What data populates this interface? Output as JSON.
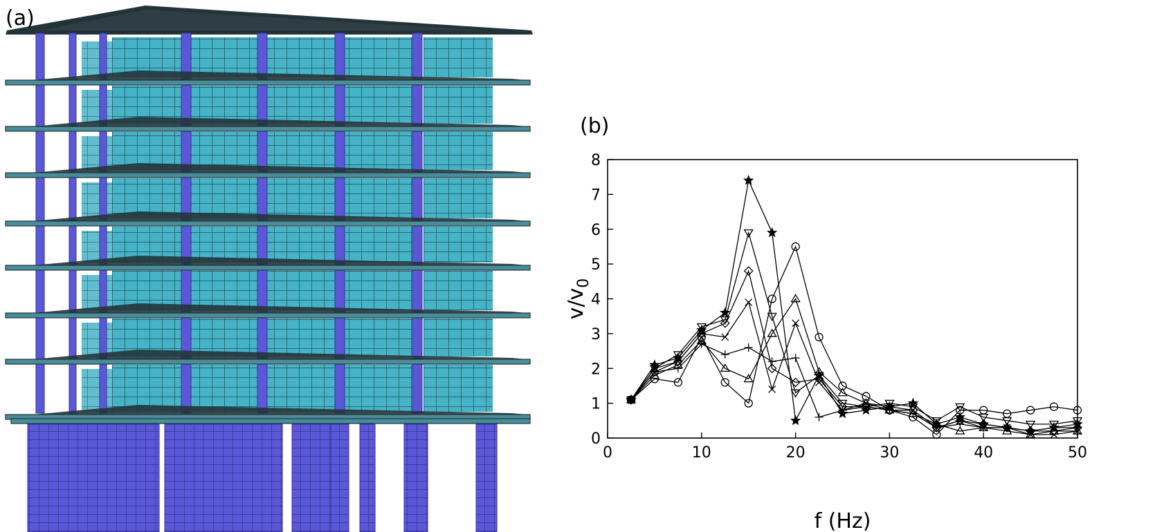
{
  "panels": {
    "a_label": "(a)",
    "b_label": "(b)"
  },
  "colors": {
    "wall": "#46b3c6",
    "wall_line": "#1b4a55",
    "column": "#5a58d6",
    "column_dark": "#34329a",
    "slab": "#4a8d9a",
    "slab_dark": "#22343a",
    "plot_line": "#000000"
  },
  "chart_data": {
    "type": "line",
    "title": "",
    "xlabel": "f (Hz)",
    "ylabel": "v/v",
    "ylabel_sub": "0",
    "xlim": [
      0,
      50
    ],
    "ylim": [
      0,
      8
    ],
    "xticks": [
      0,
      10,
      20,
      30,
      40,
      50
    ],
    "yticks": [
      0,
      1,
      2,
      3,
      4,
      5,
      6,
      7,
      8
    ],
    "grid": false,
    "legend": "none",
    "x": [
      2.5,
      5,
      7.5,
      10,
      12.5,
      15,
      17.5,
      20,
      22.5,
      25,
      27.5,
      30,
      32.5,
      35,
      37.5,
      40,
      42.5,
      45,
      47.5,
      50
    ],
    "series": [
      {
        "marker": "star",
        "values": [
          1.1,
          2.1,
          2.3,
          3.1,
          3.6,
          7.4,
          5.9,
          0.5,
          1.8,
          0.7,
          0.8,
          0.9,
          1.0,
          0.4,
          0.6,
          0.4,
          0.3,
          0.2,
          0.3,
          0.4
        ]
      },
      {
        "marker": "circle",
        "values": [
          1.1,
          1.7,
          1.6,
          2.9,
          1.6,
          1.0,
          4.0,
          5.5,
          2.9,
          1.5,
          1.2,
          0.8,
          0.6,
          0.1,
          0.8,
          0.8,
          0.7,
          0.8,
          0.9,
          0.8
        ]
      },
      {
        "marker": "triangle-down",
        "values": [
          1.1,
          2.0,
          2.4,
          3.2,
          3.4,
          5.9,
          3.5,
          1.3,
          1.8,
          1.0,
          0.9,
          1.0,
          0.9,
          0.5,
          0.9,
          0.6,
          0.5,
          0.4,
          0.4,
          0.5
        ]
      },
      {
        "marker": "triangle-up",
        "values": [
          1.1,
          1.8,
          2.1,
          2.8,
          2.0,
          1.7,
          3.0,
          4.0,
          1.9,
          1.3,
          1.0,
          0.8,
          0.7,
          0.4,
          0.2,
          0.3,
          0.2,
          0.1,
          0.2,
          0.2
        ]
      },
      {
        "marker": "diamond",
        "values": [
          1.1,
          1.9,
          2.2,
          3.0,
          3.3,
          4.8,
          2.0,
          1.6,
          1.7,
          0.9,
          0.9,
          0.8,
          0.8,
          0.3,
          0.5,
          0.4,
          0.3,
          0.2,
          0.2,
          0.3
        ]
      },
      {
        "marker": "x",
        "values": [
          1.1,
          2.0,
          2.2,
          3.0,
          2.9,
          3.9,
          1.4,
          3.3,
          1.6,
          0.8,
          1.0,
          0.9,
          0.8,
          0.3,
          0.5,
          0.3,
          0.3,
          0.1,
          0.1,
          0.2
        ]
      },
      {
        "marker": "plus",
        "values": [
          1.1,
          1.9,
          2.0,
          2.7,
          2.4,
          2.6,
          2.2,
          2.3,
          0.6,
          0.8,
          0.9,
          0.8,
          0.7,
          0.3,
          0.4,
          0.3,
          0.3,
          0.2,
          0.3,
          0.3
        ]
      }
    ]
  }
}
